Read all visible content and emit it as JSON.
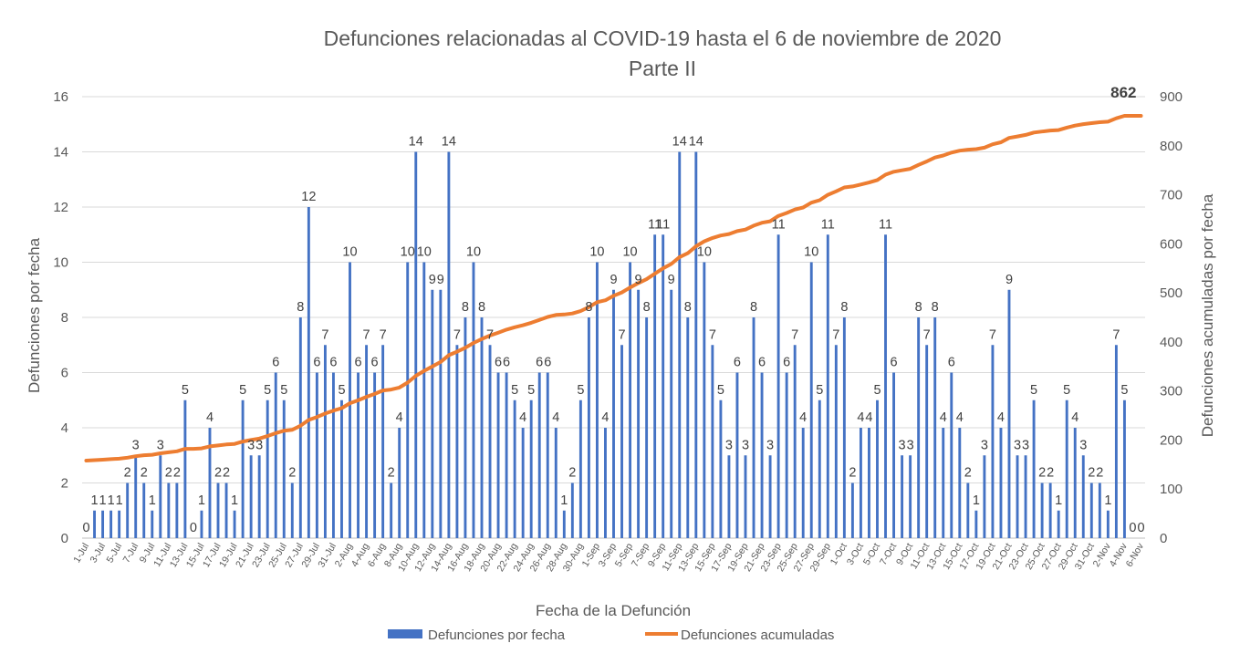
{
  "chart_data": {
    "type": "bar",
    "title": "Defunciones relacionadas al COVID-19 hasta el 6 de noviembre de 2020",
    "subtitle": "Parte II",
    "xlabel": "Fecha de la Defunción",
    "ylabel": "Defunciones por fecha",
    "y2label": "Defunciones acumuladas por fecha",
    "ylim": [
      0,
      16
    ],
    "y_ticks": [
      "0",
      "2",
      "4",
      "6",
      "8",
      "10",
      "12",
      "14",
      "16"
    ],
    "y2lim": [
      0,
      900
    ],
    "y2_ticks": [
      "0",
      "100",
      "200",
      "300",
      "400",
      "500",
      "600",
      "700",
      "800",
      "900"
    ],
    "grid": true,
    "legend_position": "bottom",
    "x_tick_labels": [
      "1-Jul",
      "3-Jul",
      "5-Jul",
      "7-Jul",
      "9-Jul",
      "11-Jul",
      "13-Jul",
      "15-Jul",
      "17-Jul",
      "19-Jul",
      "21-Jul",
      "23-Jul",
      "25-Jul",
      "27-Jul",
      "29-Jul",
      "31-Jul",
      "2-Aug",
      "4-Aug",
      "6-Aug",
      "8-Aug",
      "10-Aug",
      "12-Aug",
      "14-Aug",
      "16-Aug",
      "18-Aug",
      "20-Aug",
      "22-Aug",
      "24-Aug",
      "26-Aug",
      "28-Aug",
      "30-Aug",
      "1-Sep",
      "3-Sep",
      "5-Sep",
      "7-Sep",
      "9-Sep",
      "11-Sep",
      "13-Sep",
      "15-Sep",
      "17-Sep",
      "19-Sep",
      "21-Sep",
      "23-Sep",
      "25-Sep",
      "27-Sep",
      "29-Sep",
      "1-Oct",
      "3-Oct",
      "5-Oct",
      "7-Oct",
      "9-Oct",
      "11-Oct",
      "13-Oct",
      "15-Oct",
      "17-Oct",
      "19-Oct",
      "21-Oct",
      "23-Oct",
      "25-Oct",
      "27-Oct",
      "29-Oct",
      "31-Oct",
      "2-Nov",
      "4-Nov",
      "6-Nov"
    ],
    "series": [
      {
        "name": "Defunciones por fecha",
        "type": "bar",
        "color": "#4472c4",
        "values": [
          0,
          1,
          1,
          1,
          1,
          2,
          3,
          2,
          1,
          3,
          2,
          2,
          5,
          0,
          1,
          4,
          2,
          2,
          1,
          5,
          3,
          3,
          5,
          6,
          5,
          2,
          8,
          12,
          6,
          7,
          6,
          5,
          10,
          6,
          7,
          6,
          7,
          2,
          4,
          10,
          14,
          10,
          9,
          9,
          14,
          7,
          8,
          10,
          8,
          7,
          6,
          6,
          5,
          4,
          5,
          6,
          6,
          4,
          1,
          2,
          5,
          8,
          10,
          4,
          9,
          7,
          10,
          9,
          8,
          11,
          11,
          9,
          14,
          8,
          14,
          10,
          7,
          5,
          3,
          6,
          3,
          8,
          6,
          3,
          11,
          6,
          7,
          4,
          10,
          5,
          11,
          7,
          8,
          2,
          4,
          4,
          5,
          11,
          6,
          3,
          3,
          8,
          7,
          8,
          4,
          6,
          4,
          2,
          1,
          3,
          7,
          4,
          9,
          3,
          3,
          5,
          2,
          2,
          1,
          5,
          4,
          3,
          2,
          2,
          1,
          7,
          5,
          0,
          0
        ]
      },
      {
        "name": "Defunciones acumuladas",
        "type": "line",
        "color": "#ed7d31",
        "axis": "right",
        "start": 158,
        "final_label": "862"
      }
    ]
  },
  "legend": {
    "bar_label": "Defunciones por fecha",
    "line_label": "Defunciones acumuladas"
  }
}
